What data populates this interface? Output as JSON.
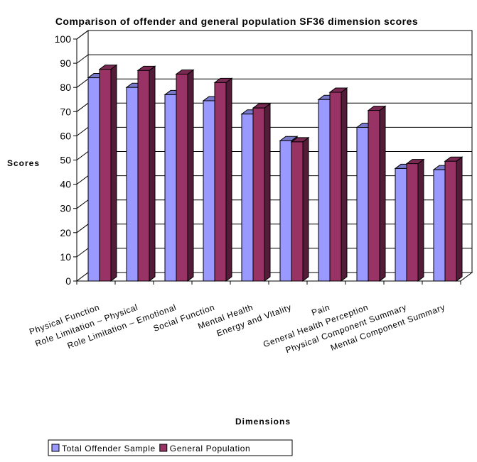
{
  "chart_data": {
    "type": "bar",
    "title": "Comparison of offender and general population SF36 dimension scores",
    "xlabel": "Dimensions",
    "ylabel": "Scores",
    "ylim": [
      0,
      100
    ],
    "yticks": [
      0,
      10,
      20,
      30,
      40,
      50,
      60,
      70,
      80,
      90,
      100
    ],
    "grid": true,
    "legend_position": "bottom-left",
    "categories": [
      "Physical Function",
      "Role Limitation – Physical",
      "Role Limitation – Emotional",
      "Social Function",
      "Mental Health",
      "Energy and Vitality",
      "Pain",
      "General Health Perception",
      "Physical Component Summary",
      "Mental Component Summary"
    ],
    "series": [
      {
        "name": "Total Offender Sample",
        "color": "#9999ff",
        "values": [
          84,
          80,
          77,
          74.5,
          69,
          58,
          75,
          63.5,
          46.5,
          46
        ]
      },
      {
        "name": "General Population",
        "color": "#993366",
        "values": [
          87.5,
          87,
          85.5,
          82,
          71.5,
          57.5,
          78,
          70.5,
          48.5,
          49.5
        ]
      }
    ]
  }
}
